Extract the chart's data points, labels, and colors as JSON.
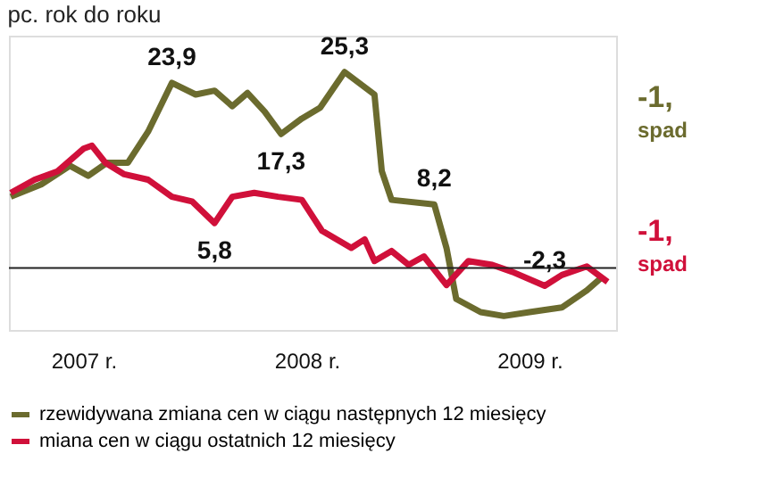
{
  "chart_data": {
    "type": "line",
    "title": "pc. rok do roku",
    "xlim": [
      "2007-03-01",
      "2009-11-20"
    ],
    "xticks": [
      {
        "value": "2007-07-01",
        "label": "2007 r."
      },
      {
        "value": "2008-07-01",
        "label": "2008 r."
      },
      {
        "value": "2009-07-01",
        "label": "2009 r."
      }
    ],
    "ylim": [
      -8,
      30
    ],
    "tick_labels": "x",
    "grid": false,
    "legend": "bottom",
    "marker": "none",
    "line_style": "solid",
    "ref_lines": [
      {
        "axis": "y",
        "value": 0,
        "color": "#222222"
      }
    ],
    "annotations": [
      "-1,",
      "spad",
      "-1,",
      "spad"
    ],
    "series": [
      {
        "name": "rzewidywana zmiana cen w ciągu następnych 12 miesięcy",
        "color": "#6b6b2e",
        "x": [
          "2007-03-04",
          "2007-04-23",
          "2007-06-09",
          "2007-07-09",
          "2007-08-09",
          "2007-09-12",
          "2007-10-15",
          "2007-11-23",
          "2008-01-01",
          "2008-02-01",
          "2008-03-01",
          "2008-03-26",
          "2008-04-23",
          "2008-05-20",
          "2008-06-23",
          "2008-07-23",
          "2008-09-01",
          "2008-10-20",
          "2008-11-01",
          "2008-11-17",
          "2009-01-26",
          "2009-02-15",
          "2009-03-03",
          "2009-04-12",
          "2009-05-20",
          "2009-07-01",
          "2009-08-23",
          "2009-10-03",
          "2009-10-26"
        ],
        "values": [
          9.2,
          10.8,
          13.2,
          11.9,
          13.6,
          13.6,
          17.6,
          23.9,
          22.4,
          22.9,
          20.9,
          22.6,
          20.2,
          17.3,
          19.3,
          20.7,
          25.3,
          22.4,
          12.5,
          8.8,
          8.2,
          2.6,
          -4.0,
          -5.7,
          -6.2,
          -5.7,
          -5.1,
          -2.9,
          -1.3
        ],
        "value_labels": [
          null,
          null,
          null,
          null,
          null,
          null,
          null,
          "23,9",
          null,
          null,
          null,
          null,
          null,
          "17,3",
          null,
          null,
          "25,3",
          null,
          null,
          null,
          "8,2",
          null,
          null,
          null,
          null,
          null,
          null,
          null,
          null
        ]
      },
      {
        "name": "miana cen w ciągu ostatnich 12 miesięcy",
        "color": "#d0103a",
        "x": [
          "2007-03-04",
          "2007-04-12",
          "2007-05-20",
          "2007-07-01",
          "2007-07-15",
          "2007-08-06",
          "2007-09-06",
          "2007-10-15",
          "2007-11-23",
          "2007-12-26",
          "2008-02-01",
          "2008-03-01",
          "2008-04-06",
          "2008-05-15",
          "2008-06-23",
          "2008-07-26",
          "2008-09-12",
          "2008-10-04",
          "2008-10-20",
          "2008-11-17",
          "2008-12-15",
          "2009-01-09",
          "2009-02-15",
          "2009-03-23",
          "2009-05-01",
          "2009-06-03",
          "2009-07-26",
          "2009-08-23",
          "2009-10-03",
          "2009-11-06"
        ],
        "values": [
          9.7,
          11.4,
          12.5,
          15.4,
          15.8,
          13.6,
          12.1,
          11.4,
          9.2,
          8.6,
          5.8,
          9.2,
          9.7,
          9.2,
          8.8,
          4.8,
          2.6,
          3.7,
          0.9,
          2.2,
          0.4,
          1.5,
          -2.2,
          0.9,
          0.4,
          -0.5,
          -2.3,
          -0.9,
          0.2,
          -1.8
        ],
        "value_labels": [
          null,
          null,
          null,
          null,
          null,
          null,
          null,
          null,
          null,
          null,
          "5,8",
          null,
          null,
          null,
          null,
          null,
          null,
          null,
          null,
          null,
          null,
          null,
          null,
          null,
          null,
          null,
          "-2,3",
          null,
          null,
          null
        ]
      }
    ]
  }
}
